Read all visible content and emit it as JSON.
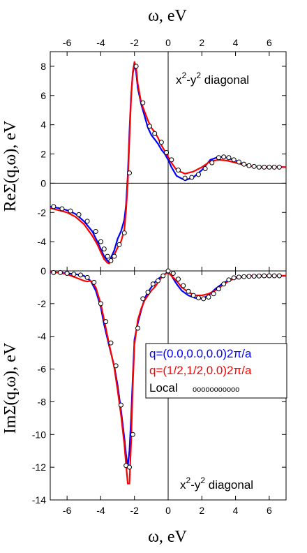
{
  "chart_data": [
    {
      "type": "line",
      "panel": "top",
      "annotation": {
        "main": "x",
        "sup1": "2",
        "mid": "-y",
        "sup2": "2",
        "tail": " diagonal"
      },
      "xlabel": "ω, eV",
      "ylabel": "ReΣ(q,ω), eV",
      "xlim": [
        -7,
        7
      ],
      "ylim": [
        -6,
        9
      ],
      "xticks": [
        -6,
        -4,
        -2,
        0,
        2,
        4,
        6
      ],
      "yticks": [
        -4,
        -2,
        0,
        2,
        4,
        6,
        8
      ],
      "grid": false,
      "series": [
        {
          "color": "#0000ff",
          "x": [
            -7,
            -6.5,
            -6,
            -5.5,
            -5,
            -4.5,
            -4.2,
            -4,
            -3.8,
            -3.6,
            -3.5,
            -3.4,
            -3.2,
            -3,
            -2.8,
            -2.6,
            -2.5,
            -2.4,
            -2.3,
            -2.2,
            -2.1,
            -2,
            -1.9,
            -1.8,
            -1.6,
            -1.4,
            -1.2,
            -1,
            -0.8,
            -0.6,
            -0.4,
            -0.2,
            0,
            0.2,
            0.5,
            1,
            1.5,
            2,
            2.5,
            3,
            3.5,
            4,
            4.5,
            5,
            5.5,
            6,
            6.5,
            7
          ],
          "y": [
            -1.6,
            -1.7,
            -1.85,
            -2.1,
            -2.6,
            -3.3,
            -4.0,
            -4.5,
            -5.0,
            -5.3,
            -5.4,
            -5.1,
            -4.6,
            -3.8,
            -3.3,
            -2.5,
            -1.5,
            0.5,
            3.5,
            6.0,
            7.5,
            8.1,
            7.6,
            6.5,
            5.4,
            4.6,
            3.8,
            3.3,
            3.0,
            2.7,
            2.3,
            2.0,
            1.6,
            1.1,
            0.5,
            0.2,
            0.4,
            0.9,
            1.6,
            1.8,
            1.75,
            1.55,
            1.3,
            1.15,
            1.1,
            1.1,
            1.1,
            1.1
          ]
        },
        {
          "color": "#ff0000",
          "x": [
            -7,
            -6.5,
            -6,
            -5.5,
            -5,
            -4.5,
            -4.2,
            -4,
            -3.8,
            -3.6,
            -3.5,
            -3.4,
            -3.2,
            -3,
            -2.8,
            -2.6,
            -2.5,
            -2.4,
            -2.3,
            -2.2,
            -2.1,
            -2,
            -1.9,
            -1.8,
            -1.6,
            -1.4,
            -1.2,
            -1,
            -0.8,
            -0.6,
            -0.4,
            -0.2,
            0,
            0.2,
            0.5,
            1,
            1.5,
            2,
            2.5,
            3,
            3.5,
            4,
            4.5,
            5,
            5.5,
            6,
            6.5,
            7
          ],
          "y": [
            -1.7,
            -1.85,
            -2.0,
            -2.3,
            -2.8,
            -3.6,
            -4.2,
            -4.7,
            -5.2,
            -5.45,
            -5.5,
            -5.3,
            -4.9,
            -4.4,
            -4.0,
            -3.2,
            -1.9,
            0.0,
            3.0,
            5.8,
            7.6,
            8.3,
            7.9,
            6.8,
            5.5,
            4.9,
            4.3,
            3.8,
            3.5,
            3.1,
            2.6,
            2.2,
            1.8,
            1.4,
            0.9,
            0.65,
            0.8,
            1.1,
            1.5,
            1.6,
            1.55,
            1.4,
            1.25,
            1.15,
            1.1,
            1.1,
            1.1,
            1.1
          ]
        },
        {
          "marker": "circle",
          "x": [
            -6.8,
            -6.3,
            -5.8,
            -5.3,
            -4.8,
            -4.3,
            -4.0,
            -3.8,
            -3.6,
            -3.4,
            -3.2,
            -2.9,
            -2.6,
            -2.3,
            -1.9,
            -1.5,
            -1.1,
            -0.8,
            -0.4,
            -0.1,
            0.2,
            0.6,
            1.0,
            1.4,
            1.8,
            2.2,
            2.6,
            3.0,
            3.3,
            3.6,
            3.9,
            4.2,
            4.5,
            4.8,
            5.1,
            5.4,
            5.7,
            6.0,
            6.3,
            6.6
          ],
          "y": [
            -1.6,
            -1.75,
            -1.9,
            -2.15,
            -2.6,
            -3.3,
            -4.0,
            -4.5,
            -5.0,
            -5.3,
            -5.0,
            -4.2,
            -3.4,
            0.7,
            8.0,
            5.5,
            3.9,
            3.4,
            2.8,
            2.1,
            1.6,
            0.9,
            0.35,
            0.4,
            0.6,
            1.0,
            1.4,
            1.75,
            1.8,
            1.75,
            1.6,
            1.45,
            1.3,
            1.2,
            1.15,
            1.1,
            1.1,
            1.1,
            1.1,
            1.1
          ]
        }
      ]
    },
    {
      "type": "line",
      "panel": "bottom",
      "annotation": {
        "main": "x",
        "sup1": "2",
        "mid": "-y",
        "sup2": "2",
        "tail": " diagonal"
      },
      "xlabel": "ω, eV",
      "ylabel": "ImΣ(q,ω), eV",
      "xlim": [
        -7,
        7
      ],
      "ylim": [
        -14,
        0
      ],
      "xticks": [
        -6,
        -4,
        -2,
        0,
        2,
        4,
        6
      ],
      "yticks": [
        -14,
        -12,
        -10,
        -8,
        -6,
        -4,
        -2,
        0
      ],
      "grid": false,
      "legend": {
        "placement": "center-right",
        "entries": [
          "q=(0.0,0.0,0.0)2π/a",
          "q=(1/2,1/2,0.0)2π/a",
          "Local"
        ],
        "local_marker": "ooooooooooo"
      },
      "series": [
        {
          "name": "q=(0.0,0.0,0.0)2π/a",
          "color": "#0000ff",
          "x": [
            -7,
            -6.5,
            -6,
            -5.5,
            -5,
            -4.6,
            -4.3,
            -4.0,
            -3.8,
            -3.5,
            -3.2,
            -3.0,
            -2.8,
            -2.6,
            -2.5,
            -2.4,
            -2.3,
            -2.2,
            -2.1,
            -2.0,
            -1.8,
            -1.6,
            -1.4,
            -1.2,
            -1.0,
            -0.8,
            -0.6,
            -0.4,
            -0.2,
            0,
            0.2,
            0.5,
            0.8,
            1.2,
            1.6,
            2.0,
            2.4,
            2.8,
            3.2,
            3.6,
            4.0,
            4.5,
            5,
            5.5,
            6,
            6.5,
            7
          ],
          "y": [
            -0.1,
            -0.1,
            -0.15,
            -0.2,
            -0.3,
            -0.6,
            -1.2,
            -2.2,
            -3.3,
            -4.6,
            -5.8,
            -7.0,
            -8.5,
            -10.2,
            -11.2,
            -12.0,
            -11.0,
            -9.0,
            -6.5,
            -4.2,
            -3.2,
            -2.4,
            -1.7,
            -1.3,
            -1.0,
            -0.7,
            -0.5,
            -0.35,
            -0.2,
            -0.05,
            -0.3,
            -0.8,
            -1.2,
            -1.5,
            -1.65,
            -1.7,
            -1.5,
            -1.1,
            -0.8,
            -0.55,
            -0.4,
            -0.35,
            -0.3,
            -0.3,
            -0.3,
            -0.3,
            -0.3
          ]
        },
        {
          "name": "q=(1/2,1/2,0.0)2π/a",
          "color": "#ff0000",
          "x": [
            -7,
            -6.5,
            -6,
            -5.5,
            -5,
            -4.8,
            -4.6,
            -4.3,
            -4.0,
            -3.8,
            -3.5,
            -3.2,
            -3.0,
            -2.8,
            -2.6,
            -2.5,
            -2.4,
            -2.3,
            -2.2,
            -2.1,
            -2.0,
            -1.8,
            -1.6,
            -1.4,
            -1.2,
            -1.0,
            -0.8,
            -0.6,
            -0.4,
            -0.2,
            0,
            0.2,
            0.5,
            0.8,
            1.2,
            1.6,
            2.0,
            2.4,
            2.8,
            3.2,
            3.6,
            4.0,
            4.5,
            5,
            5.5,
            6,
            6.5,
            7
          ],
          "y": [
            -0.05,
            -0.1,
            -0.2,
            -0.4,
            -0.6,
            -0.65,
            -0.6,
            -1.0,
            -2.0,
            -3.0,
            -4.5,
            -5.9,
            -7.3,
            -8.8,
            -10.6,
            -11.8,
            -13.0,
            -13.0,
            -10.5,
            -7.0,
            -4.5,
            -3.0,
            -2.3,
            -1.8,
            -1.5,
            -1.2,
            -1.0,
            -0.7,
            -0.4,
            -0.2,
            -0.1,
            -0.3,
            -0.6,
            -1.0,
            -1.3,
            -1.5,
            -1.5,
            -1.4,
            -1.2,
            -0.9,
            -0.6,
            -0.45,
            -0.35,
            -0.3,
            -0.3,
            -0.3,
            -0.3,
            -0.3
          ]
        },
        {
          "name": "Local",
          "marker": "circle",
          "x": [
            -6.8,
            -6.4,
            -6.0,
            -5.6,
            -5.2,
            -4.8,
            -4.4,
            -4.0,
            -3.7,
            -3.4,
            -3.1,
            -2.8,
            -2.5,
            -2.3,
            -2.1,
            -1.8,
            -1.5,
            -1.2,
            -0.9,
            -0.6,
            -0.3,
            0.0,
            0.3,
            0.6,
            0.9,
            1.2,
            1.5,
            1.8,
            2.1,
            2.4,
            2.7,
            3.0,
            3.3,
            3.6,
            3.9,
            4.2,
            4.5,
            4.8,
            5.1,
            5.4,
            5.7,
            6.0,
            6.3,
            6.6
          ],
          "y": [
            -0.1,
            -0.1,
            -0.15,
            -0.2,
            -0.25,
            -0.4,
            -0.7,
            -2.0,
            -3.1,
            -4.4,
            -5.8,
            -8.2,
            -11.9,
            -12.0,
            -10.0,
            -3.5,
            -1.7,
            -1.3,
            -0.8,
            -0.6,
            -0.3,
            0.0,
            -0.15,
            -0.5,
            -0.9,
            -1.25,
            -1.5,
            -1.65,
            -1.7,
            -1.6,
            -1.4,
            -1.1,
            -0.8,
            -0.55,
            -0.42,
            -0.38,
            -0.35,
            -0.33,
            -0.32,
            -0.31,
            -0.3,
            -0.3,
            -0.3,
            -0.3
          ]
        }
      ]
    }
  ]
}
